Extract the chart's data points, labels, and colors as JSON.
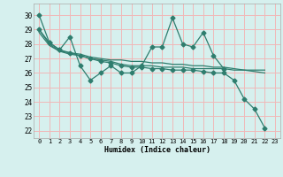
{
  "xlabel": "Humidex (Indice chaleur)",
  "bg_color": "#d6f0ee",
  "grid_color": "#f0b8b8",
  "line_color": "#2e7d6e",
  "spine_color": "#aaaaaa",
  "xlim": [
    -0.5,
    23.5
  ],
  "ylim": [
    21.5,
    30.8
  ],
  "yticks": [
    22,
    23,
    24,
    25,
    26,
    27,
    28,
    29,
    30
  ],
  "xticks": [
    0,
    1,
    2,
    3,
    4,
    5,
    6,
    7,
    8,
    9,
    10,
    11,
    12,
    13,
    14,
    15,
    16,
    17,
    18,
    19,
    20,
    21,
    22,
    23
  ],
  "series1_x": [
    0,
    1,
    2,
    3,
    4,
    5,
    6,
    7,
    8,
    9,
    10,
    11,
    12,
    13,
    14,
    15,
    16,
    17,
    18
  ],
  "series1_y": [
    30.0,
    28.1,
    27.6,
    28.5,
    26.5,
    25.5,
    26.0,
    26.5,
    26.0,
    26.0,
    26.5,
    27.8,
    27.8,
    29.8,
    28.0,
    27.8,
    28.8,
    27.2,
    26.3
  ],
  "series2_x": [
    0,
    1,
    2,
    3,
    4,
    5,
    6,
    7,
    8,
    9,
    10,
    11,
    12,
    13,
    14,
    15,
    16,
    17,
    18,
    19,
    20,
    21,
    22
  ],
  "series2_y": [
    29.0,
    28.0,
    27.5,
    27.3,
    27.2,
    27.0,
    26.9,
    26.8,
    26.6,
    26.5,
    26.5,
    26.5,
    26.4,
    26.4,
    26.4,
    26.3,
    26.3,
    26.3,
    26.3,
    26.2,
    26.2,
    26.2,
    26.2
  ],
  "series3_x": [
    0,
    1,
    2,
    3,
    4,
    5,
    6,
    7,
    8,
    9,
    10,
    11,
    12,
    13,
    14,
    15,
    16,
    17,
    18,
    19,
    20,
    21,
    22
  ],
  "series3_y": [
    28.8,
    27.9,
    27.5,
    27.4,
    27.3,
    27.1,
    27.0,
    26.9,
    26.9,
    26.8,
    26.8,
    26.7,
    26.7,
    26.6,
    26.6,
    26.5,
    26.5,
    26.4,
    26.4,
    26.3,
    26.2,
    26.1,
    26.0
  ],
  "series4_x": [
    0,
    1,
    2,
    3,
    4,
    5,
    6,
    7,
    8,
    9,
    10,
    11,
    12,
    13,
    14,
    15,
    16,
    17,
    18,
    19,
    20,
    21,
    22
  ],
  "series4_y": [
    29.0,
    28.1,
    27.6,
    27.4,
    27.2,
    27.0,
    26.8,
    26.7,
    26.5,
    26.4,
    26.4,
    26.3,
    26.3,
    26.2,
    26.2,
    26.2,
    26.1,
    26.0,
    26.0,
    25.5,
    24.2,
    23.5,
    22.2
  ]
}
